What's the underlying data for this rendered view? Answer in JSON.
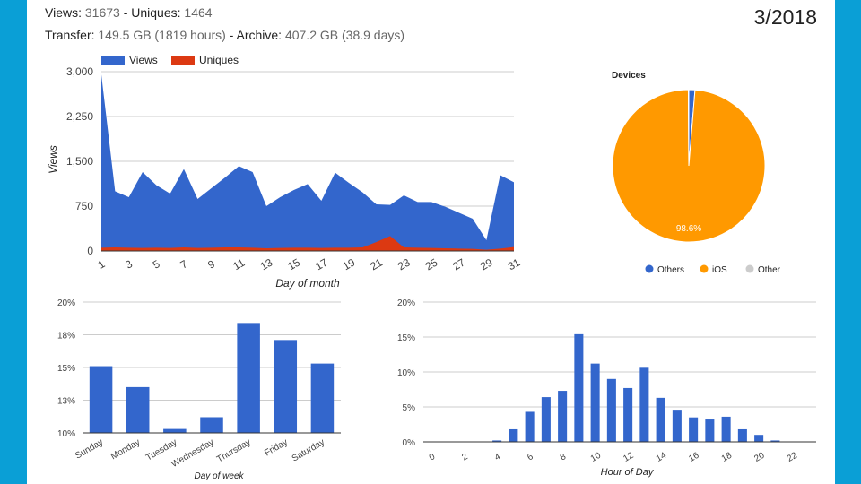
{
  "header": {
    "views_label": "Views:",
    "views_value": "31673",
    "sep": " - ",
    "uniques_label": "Uniques:",
    "uniques_value": "1464",
    "transfer_label": "Transfer:",
    "transfer_value": "149.5 GB (1819 hours)",
    "archive_label": "Archive:",
    "archive_value": "407.2 GB (38.9 days)",
    "month": "3/2018"
  },
  "colors": {
    "views": "#3366cc",
    "uniques": "#dc3912",
    "ios": "#ff9900",
    "other": "#cccccc",
    "frame": "#0a9fd6",
    "grid": "#cccccc"
  },
  "chart_data": [
    {
      "type": "area",
      "xlabel": "Day of month",
      "ylabel": "Views",
      "ylim": [
        0,
        3000
      ],
      "yticks": [
        "0",
        "750",
        "1,500",
        "2,250",
        "3,000"
      ],
      "ytick_values": [
        0,
        750,
        1500,
        2250,
        3000
      ],
      "xticks": [
        "1",
        "3",
        "5",
        "7",
        "9",
        "11",
        "13",
        "15",
        "17",
        "19",
        "21",
        "23",
        "25",
        "27",
        "29",
        "31"
      ],
      "legend": "top-left",
      "x": [
        1,
        2,
        3,
        4,
        5,
        6,
        7,
        8,
        9,
        10,
        11,
        12,
        13,
        14,
        15,
        16,
        17,
        18,
        19,
        20,
        21,
        22,
        23,
        24,
        25,
        26,
        27,
        28,
        29,
        30,
        31
      ],
      "series": [
        {
          "name": "Views",
          "values": [
            2950,
            1000,
            900,
            1320,
            1100,
            960,
            1370,
            870,
            1050,
            1230,
            1420,
            1320,
            750,
            900,
            1020,
            1120,
            840,
            1310,
            1140,
            980,
            780,
            770,
            930,
            820,
            820,
            740,
            640,
            540,
            180,
            1270,
            1150
          ]
        },
        {
          "name": "Uniques",
          "values": [
            55,
            60,
            55,
            50,
            55,
            50,
            60,
            50,
            55,
            60,
            60,
            55,
            45,
            50,
            55,
            55,
            50,
            55,
            55,
            60,
            150,
            250,
            60,
            55,
            50,
            45,
            40,
            35,
            20,
            40,
            65
          ]
        }
      ]
    },
    {
      "type": "pie",
      "title": "Devices",
      "legend": "bottom",
      "labels": [
        "Others",
        "iOS",
        "Other"
      ],
      "values": [
        1.3,
        98.6,
        0.1
      ],
      "slice_label": "98.6%"
    },
    {
      "type": "bar",
      "xlabel": "Day of week",
      "categories": [
        "Sunday",
        "Monday",
        "Tuesday",
        "Wednesday",
        "Thursday",
        "Friday",
        "Saturday"
      ],
      "values": [
        15.1,
        13.5,
        10.3,
        11.2,
        18.4,
        17.1,
        15.3
      ],
      "ylim": [
        10,
        20
      ],
      "yticks": [
        "10%",
        "13%",
        "15%",
        "18%",
        "20%"
      ],
      "ytick_values": [
        10,
        12.5,
        15,
        17.5,
        20
      ]
    },
    {
      "type": "bar",
      "xlabel": "Hour of Day",
      "x": [
        0,
        1,
        2,
        3,
        4,
        5,
        6,
        7,
        8,
        9,
        10,
        11,
        12,
        13,
        14,
        15,
        16,
        17,
        18,
        19,
        20,
        21,
        22,
        23
      ],
      "values": [
        0,
        0,
        0,
        0,
        0.2,
        1.8,
        4.3,
        6.4,
        7.3,
        15.4,
        11.2,
        9.0,
        7.7,
        10.6,
        6.3,
        4.6,
        3.5,
        3.2,
        3.6,
        1.8,
        1.0,
        0.2,
        0,
        0
      ],
      "xticks": [
        "0",
        "2",
        "4",
        "6",
        "8",
        "10",
        "12",
        "14",
        "16",
        "18",
        "20",
        "22"
      ],
      "ylim": [
        0,
        20
      ],
      "yticks": [
        "0%",
        "5%",
        "10%",
        "15%",
        "20%"
      ],
      "ytick_values": [
        0,
        5,
        10,
        15,
        20
      ]
    }
  ]
}
